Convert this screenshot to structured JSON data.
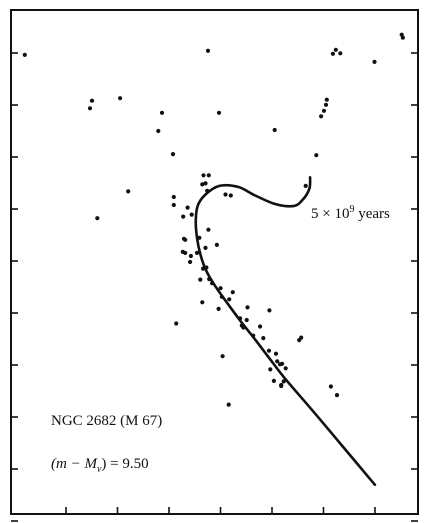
{
  "chart_data": {
    "type": "scatter",
    "title": "NGC 2682 (M 67)",
    "distance_modulus_label": "(m − M",
    "distance_modulus_subscript": "v",
    "distance_modulus_value": ") = 9.50",
    "isochrone_label": "5 × 10",
    "isochrone_exponent": "9",
    "isochrone_unit": " years",
    "xlim": [
      0,
      1
    ],
    "ylim": [
      0,
      1
    ],
    "x_tick_count": 7,
    "y_tick_count": 10,
    "x_tick_labels": [],
    "y_tick_labels": [],
    "grid": false,
    "series": [
      {
        "role": "stars",
        "points": [
          [
            0.034,
            0.911
          ],
          [
            0.199,
            0.82
          ],
          [
            0.268,
            0.825
          ],
          [
            0.194,
            0.805
          ],
          [
            0.371,
            0.796
          ],
          [
            0.362,
            0.76
          ],
          [
            0.511,
            0.796
          ],
          [
            0.484,
            0.919
          ],
          [
            0.648,
            0.762
          ],
          [
            0.96,
            0.951
          ],
          [
            0.963,
            0.945
          ],
          [
            0.893,
            0.897
          ],
          [
            0.798,
            0.921
          ],
          [
            0.791,
            0.913
          ],
          [
            0.809,
            0.914
          ],
          [
            0.776,
            0.822
          ],
          [
            0.774,
            0.812
          ],
          [
            0.769,
            0.8
          ],
          [
            0.762,
            0.789
          ],
          [
            0.75,
            0.712
          ],
          [
            0.724,
            0.651
          ],
          [
            0.288,
            0.64
          ],
          [
            0.398,
            0.714
          ],
          [
            0.212,
            0.587
          ],
          [
            0.47,
            0.654
          ],
          [
            0.473,
            0.672
          ],
          [
            0.482,
            0.641
          ],
          [
            0.4,
            0.629
          ],
          [
            0.4,
            0.613
          ],
          [
            0.423,
            0.59
          ],
          [
            0.444,
            0.594
          ],
          [
            0.434,
            0.608
          ],
          [
            0.428,
            0.544
          ],
          [
            0.425,
            0.546
          ],
          [
            0.422,
            0.52
          ],
          [
            0.44,
            0.5
          ],
          [
            0.472,
            0.487
          ],
          [
            0.465,
            0.465
          ],
          [
            0.48,
            0.489
          ],
          [
            0.457,
            0.518
          ],
          [
            0.478,
            0.528
          ],
          [
            0.487,
            0.466
          ],
          [
            0.463,
            0.548
          ],
          [
            0.494,
            0.458
          ],
          [
            0.518,
            0.431
          ],
          [
            0.545,
            0.44
          ],
          [
            0.536,
            0.426
          ],
          [
            0.51,
            0.407
          ],
          [
            0.563,
            0.388
          ],
          [
            0.579,
            0.385
          ],
          [
            0.567,
            0.374
          ],
          [
            0.595,
            0.354
          ],
          [
            0.635,
            0.404
          ],
          [
            0.62,
            0.349
          ],
          [
            0.634,
            0.324
          ],
          [
            0.651,
            0.318
          ],
          [
            0.654,
            0.303
          ],
          [
            0.637,
            0.287
          ],
          [
            0.661,
            0.297
          ],
          [
            0.666,
            0.298
          ],
          [
            0.675,
            0.289
          ],
          [
            0.664,
            0.254
          ],
          [
            0.646,
            0.264
          ],
          [
            0.664,
            0.256
          ],
          [
            0.708,
            0.345
          ],
          [
            0.713,
            0.35
          ],
          [
            0.67,
            0.263
          ],
          [
            0.406,
            0.378
          ],
          [
            0.52,
            0.313
          ],
          [
            0.535,
            0.217
          ],
          [
            0.786,
            0.253
          ],
          [
            0.801,
            0.236
          ],
          [
            0.486,
            0.672
          ],
          [
            0.478,
            0.656
          ],
          [
            0.485,
            0.564
          ],
          [
            0.506,
            0.534
          ],
          [
            0.47,
            0.42
          ],
          [
            0.581,
            0.41
          ],
          [
            0.612,
            0.372
          ],
          [
            0.571,
            0.37
          ],
          [
            0.54,
            0.632
          ],
          [
            0.527,
            0.634
          ],
          [
            0.515,
            0.448
          ],
          [
            0.442,
            0.512
          ],
          [
            0.428,
            0.518
          ]
        ]
      },
      {
        "role": "isochrone",
        "name": "5 × 10^9 years",
        "points": [
          [
            0.735,
            0.668
          ],
          [
            0.733,
            0.645
          ],
          [
            0.716,
            0.623
          ],
          [
            0.694,
            0.611
          ],
          [
            0.649,
            0.615
          ],
          [
            0.6,
            0.632
          ],
          [
            0.558,
            0.649
          ],
          [
            0.512,
            0.651
          ],
          [
            0.478,
            0.634
          ],
          [
            0.459,
            0.612
          ],
          [
            0.454,
            0.582
          ],
          [
            0.457,
            0.548
          ],
          [
            0.466,
            0.513
          ],
          [
            0.48,
            0.482
          ],
          [
            0.502,
            0.452
          ],
          [
            0.53,
            0.42
          ],
          [
            0.562,
            0.385
          ],
          [
            0.598,
            0.348
          ],
          [
            0.634,
            0.31
          ],
          [
            0.672,
            0.27
          ],
          [
            0.74,
            0.206
          ],
          [
            0.812,
            0.137
          ],
          [
            0.894,
            0.058
          ]
        ]
      }
    ]
  }
}
